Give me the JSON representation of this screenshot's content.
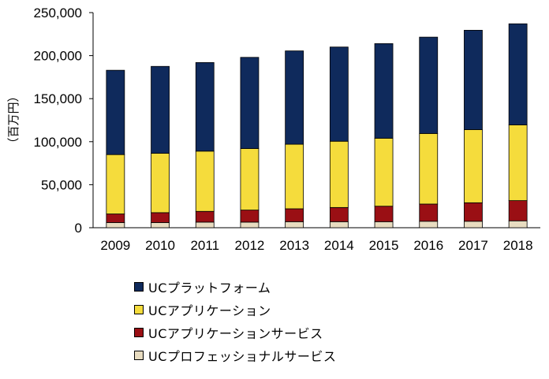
{
  "chart_data": {
    "type": "bar",
    "stacked": true,
    "title": "",
    "xlabel": "",
    "ylabel": "（百万円）",
    "ylim": [
      0,
      250000
    ],
    "yticks": [
      "0",
      "50,000",
      "100,000",
      "150,000",
      "200,000",
      "250,000"
    ],
    "ytick_values": [
      0,
      50000,
      100000,
      150000,
      200000,
      250000
    ],
    "grid": false,
    "legend_position": "bottom",
    "categories": [
      "2009",
      "2010",
      "2011",
      "2012",
      "2013",
      "2014",
      "2015",
      "2016",
      "2017",
      "2018"
    ],
    "series": [
      {
        "name": "UCプロフェッショナルサービス",
        "color": "#e8dcc0",
        "values": [
          6000,
          6000,
          6500,
          6500,
          7000,
          7000,
          7000,
          7500,
          7500,
          8000
        ]
      },
      {
        "name": "UCアプリケーションサービス",
        "color": "#9a0f14",
        "values": [
          10000,
          11500,
          12500,
          14000,
          15000,
          16500,
          18000,
          20000,
          21500,
          23500
        ]
      },
      {
        "name": "UCアプリケーション",
        "color": "#f5dc3c",
        "values": [
          69000,
          69000,
          70000,
          71500,
          75000,
          77000,
          79000,
          82000,
          85000,
          88000
        ]
      },
      {
        "name": "UCプラットフォーム",
        "color": "#0f2a5c",
        "values": [
          98000,
          101000,
          103000,
          106000,
          108500,
          109500,
          110000,
          112000,
          115500,
          117500
        ]
      }
    ]
  }
}
